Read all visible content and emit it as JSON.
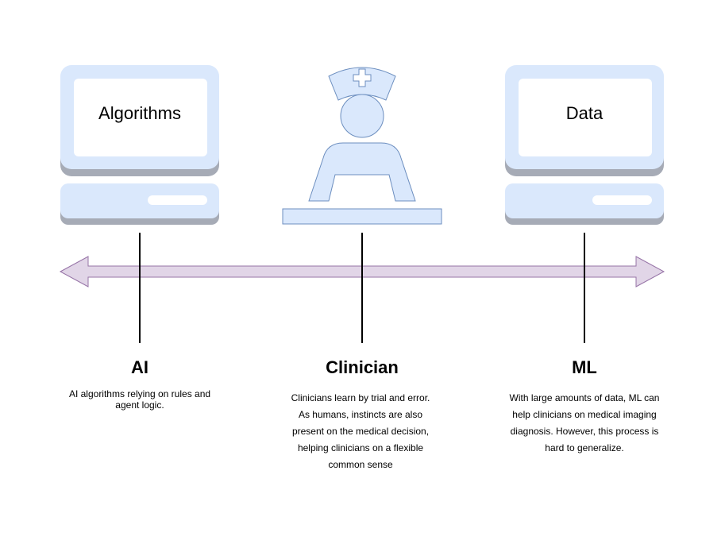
{
  "monitors": {
    "left_label": "Algorithms",
    "right_label": "Data"
  },
  "columns": [
    {
      "title": "AI",
      "description": "AI algorithms relying on rules and agent logic."
    },
    {
      "title": "Clinician",
      "description": "Clinicians learn by trial and error. As humans, instincts are also present on the medical decision, helping clinicians on a flexible common sense"
    },
    {
      "title": "ML",
      "description": "With large amounts of data, ML can help clinicians on medical imaging diagnosis. However, this process is hard to generalize."
    }
  ],
  "colors": {
    "icon_fill": "#dae8fc",
    "icon_stroke": "#6c8ebf",
    "monitor_shadow": "#a6abb6",
    "arrow_fill": "#e1d5e7",
    "arrow_stroke": "#9673a6",
    "line": "#000000"
  },
  "icons": [
    "computer-icon",
    "nurse-icon",
    "computer-icon"
  ]
}
